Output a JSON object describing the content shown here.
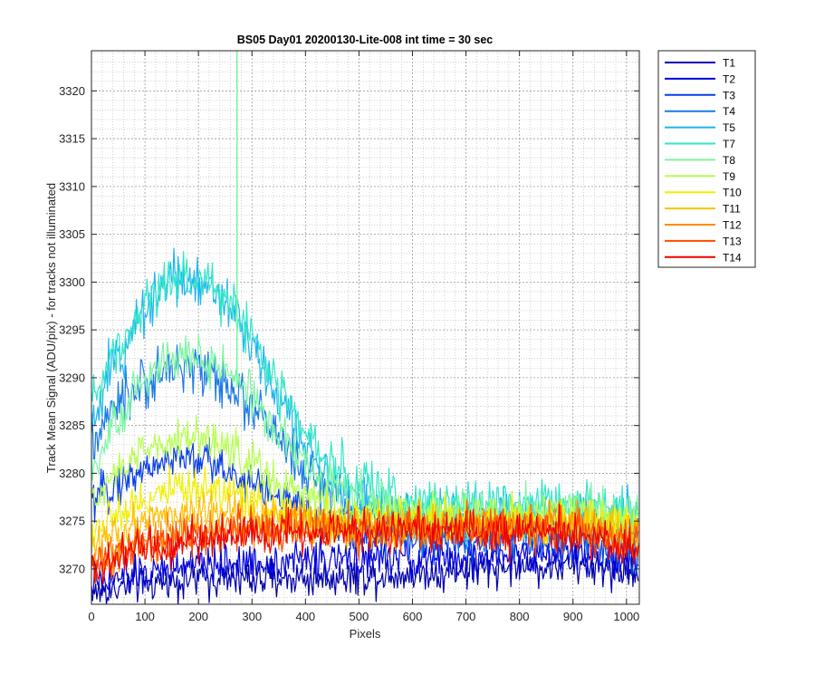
{
  "chart_data": {
    "type": "line",
    "title": "BS05 Day01 20200130-Lite-008 int time = 30 sec",
    "xlabel": "Pixels",
    "ylabel": "Track Mean Signal (ADU/pix) - for tracks not illuminated",
    "xlim": [
      0,
      1024
    ],
    "ylim": [
      3266.3,
      3324.2
    ],
    "x_ticks": [
      0,
      100,
      200,
      300,
      400,
      500,
      600,
      700,
      800,
      900,
      1000
    ],
    "y_ticks": [
      3270,
      3275,
      3280,
      3285,
      3290,
      3295,
      3300,
      3305,
      3310,
      3315,
      3320
    ],
    "y_minor_step": 1,
    "x_minor_step": 20,
    "grid": true,
    "minor_grid": true,
    "legend_position": "outside-top-right",
    "series_order": [
      "T1",
      "T2",
      "T3",
      "T4",
      "T5",
      "T7",
      "T8",
      "T9",
      "T10",
      "T11",
      "T12",
      "T13",
      "T14"
    ],
    "series": [
      {
        "name": "T1",
        "color": "#0000aa",
        "noise": 1.0,
        "profile": [
          [
            0,
            3267.5
          ],
          [
            100,
            3268.5
          ],
          [
            200,
            3269
          ],
          [
            300,
            3269
          ],
          [
            400,
            3269
          ],
          [
            500,
            3269.3
          ],
          [
            600,
            3269.5
          ],
          [
            700,
            3269.8
          ],
          [
            800,
            3270.3
          ],
          [
            900,
            3270.3
          ],
          [
            1023,
            3269.7
          ]
        ]
      },
      {
        "name": "T2",
        "color": "#0000dd",
        "noise": 1.0,
        "profile": [
          [
            0,
            3268.5
          ],
          [
            100,
            3269.5
          ],
          [
            200,
            3270.5
          ],
          [
            300,
            3270.5
          ],
          [
            400,
            3271
          ],
          [
            500,
            3271
          ],
          [
            600,
            3271
          ],
          [
            700,
            3271
          ],
          [
            800,
            3271.5
          ],
          [
            900,
            3271.5
          ],
          [
            1023,
            3270.5
          ]
        ]
      },
      {
        "name": "T3",
        "color": "#0a3fe6",
        "noise": 1.1,
        "profile": [
          [
            0,
            3277
          ],
          [
            50,
            3279
          ],
          [
            100,
            3280.5
          ],
          [
            150,
            3281.5
          ],
          [
            200,
            3281.5
          ],
          [
            250,
            3280.5
          ],
          [
            300,
            3279
          ],
          [
            350,
            3277.5
          ],
          [
            400,
            3276
          ],
          [
            450,
            3274.5
          ],
          [
            500,
            3273.5
          ],
          [
            600,
            3273
          ],
          [
            700,
            3273
          ],
          [
            800,
            3273
          ],
          [
            900,
            3272.5
          ],
          [
            1023,
            3272
          ]
        ]
      },
      {
        "name": "T4",
        "color": "#1a7ae6",
        "noise": 1.3,
        "profile": [
          [
            0,
            3283
          ],
          [
            50,
            3287
          ],
          [
            100,
            3289.5
          ],
          [
            150,
            3291
          ],
          [
            200,
            3291
          ],
          [
            250,
            3289.5
          ],
          [
            300,
            3287
          ],
          [
            350,
            3283.5
          ],
          [
            400,
            3280
          ],
          [
            450,
            3277.5
          ],
          [
            500,
            3275.5
          ],
          [
            600,
            3274.5
          ],
          [
            700,
            3274.5
          ],
          [
            800,
            3274.5
          ],
          [
            900,
            3274
          ],
          [
            1023,
            3273.5
          ]
        ]
      },
      {
        "name": "T5",
        "color": "#1cb5f0",
        "noise": 1.4,
        "profile": [
          [
            0,
            3285.5
          ],
          [
            50,
            3292
          ],
          [
            100,
            3297.5
          ],
          [
            150,
            3300.5
          ],
          [
            200,
            3300.5
          ],
          [
            250,
            3298.5
          ],
          [
            300,
            3294
          ],
          [
            350,
            3288
          ],
          [
            400,
            3282.5
          ],
          [
            450,
            3279
          ],
          [
            500,
            3276.5
          ],
          [
            600,
            3275.5
          ],
          [
            700,
            3275.5
          ],
          [
            800,
            3275.5
          ],
          [
            900,
            3275.5
          ],
          [
            1023,
            3275
          ]
        ]
      },
      {
        "name": "T7",
        "color": "#33e6c8",
        "noise": 1.3,
        "profile": [
          [
            0,
            3288
          ],
          [
            50,
            3293.5
          ],
          [
            100,
            3298
          ],
          [
            150,
            3300.5
          ],
          [
            200,
            3300.5
          ],
          [
            250,
            3298.5
          ],
          [
            300,
            3294.5
          ],
          [
            350,
            3289
          ],
          [
            400,
            3284
          ],
          [
            450,
            3280.5
          ],
          [
            500,
            3278.5
          ],
          [
            600,
            3277
          ],
          [
            700,
            3276.8
          ],
          [
            800,
            3277
          ],
          [
            900,
            3277
          ],
          [
            1023,
            3276
          ]
        ]
      },
      {
        "name": "T8",
        "color": "#7cf5a3",
        "noise": 1.2,
        "profile": [
          [
            0,
            3280
          ],
          [
            50,
            3285.5
          ],
          [
            100,
            3290
          ],
          [
            150,
            3292
          ],
          [
            200,
            3292
          ],
          [
            250,
            3291
          ],
          [
            300,
            3288
          ],
          [
            350,
            3284.5
          ],
          [
            400,
            3281
          ],
          [
            450,
            3278.5
          ],
          [
            500,
            3277
          ],
          [
            600,
            3276
          ],
          [
            700,
            3276
          ],
          [
            800,
            3276
          ],
          [
            900,
            3276
          ],
          [
            1023,
            3275.5
          ]
        ],
        "spike": {
          "x": 272,
          "y_top": 3324.2,
          "y_bottom": 3289
        }
      },
      {
        "name": "T9",
        "color": "#b5ff4d",
        "noise": 1.1,
        "profile": [
          [
            0,
            3277
          ],
          [
            50,
            3280
          ],
          [
            100,
            3282.5
          ],
          [
            150,
            3283.5
          ],
          [
            200,
            3283.5
          ],
          [
            250,
            3283
          ],
          [
            300,
            3281
          ],
          [
            350,
            3279
          ],
          [
            400,
            3277.5
          ],
          [
            450,
            3276.5
          ],
          [
            500,
            3276
          ],
          [
            600,
            3275.5
          ],
          [
            700,
            3275.5
          ],
          [
            800,
            3275.5
          ],
          [
            900,
            3275.5
          ],
          [
            1023,
            3275
          ]
        ]
      },
      {
        "name": "T10",
        "color": "#f0f000",
        "noise": 1.1,
        "profile": [
          [
            0,
            3274
          ],
          [
            50,
            3276
          ],
          [
            100,
            3277.5
          ],
          [
            150,
            3278.5
          ],
          [
            200,
            3278.5
          ],
          [
            250,
            3278
          ],
          [
            300,
            3277
          ],
          [
            350,
            3276
          ],
          [
            400,
            3275.5
          ],
          [
            500,
            3275
          ],
          [
            600,
            3275
          ],
          [
            700,
            3275
          ],
          [
            800,
            3275
          ],
          [
            900,
            3275
          ],
          [
            1023,
            3274.5
          ]
        ]
      },
      {
        "name": "T11",
        "color": "#ffc000",
        "noise": 1.1,
        "profile": [
          [
            0,
            3272.5
          ],
          [
            50,
            3274
          ],
          [
            100,
            3275.5
          ],
          [
            150,
            3276
          ],
          [
            200,
            3276
          ],
          [
            250,
            3276
          ],
          [
            300,
            3275.5
          ],
          [
            400,
            3275
          ],
          [
            500,
            3274.5
          ],
          [
            600,
            3274.5
          ],
          [
            700,
            3274.5
          ],
          [
            800,
            3274.5
          ],
          [
            900,
            3274.5
          ],
          [
            1023,
            3274
          ]
        ]
      },
      {
        "name": "T12",
        "color": "#ff8a00",
        "noise": 1.1,
        "profile": [
          [
            0,
            3271
          ],
          [
            100,
            3273
          ],
          [
            200,
            3274
          ],
          [
            300,
            3274.5
          ],
          [
            400,
            3274.5
          ],
          [
            500,
            3274.5
          ],
          [
            600,
            3274.5
          ],
          [
            700,
            3274.5
          ],
          [
            800,
            3274.5
          ],
          [
            900,
            3274.5
          ],
          [
            1023,
            3273.5
          ]
        ]
      },
      {
        "name": "T13",
        "color": "#ff4a00",
        "noise": 1.1,
        "profile": [
          [
            0,
            3270.5
          ],
          [
            100,
            3272.5
          ],
          [
            200,
            3273.5
          ],
          [
            300,
            3274
          ],
          [
            400,
            3274
          ],
          [
            500,
            3274.2
          ],
          [
            600,
            3274.3
          ],
          [
            700,
            3274.3
          ],
          [
            800,
            3274.3
          ],
          [
            900,
            3274
          ],
          [
            1023,
            3273
          ]
        ]
      },
      {
        "name": "T14",
        "color": "#ee0000",
        "noise": 1.1,
        "profile": [
          [
            0,
            3270
          ],
          [
            100,
            3272
          ],
          [
            200,
            3273
          ],
          [
            300,
            3273.5
          ],
          [
            400,
            3274
          ],
          [
            500,
            3274
          ],
          [
            600,
            3274
          ],
          [
            700,
            3274
          ],
          [
            800,
            3274
          ],
          [
            900,
            3273.8
          ],
          [
            1023,
            3272.5
          ]
        ]
      }
    ]
  }
}
